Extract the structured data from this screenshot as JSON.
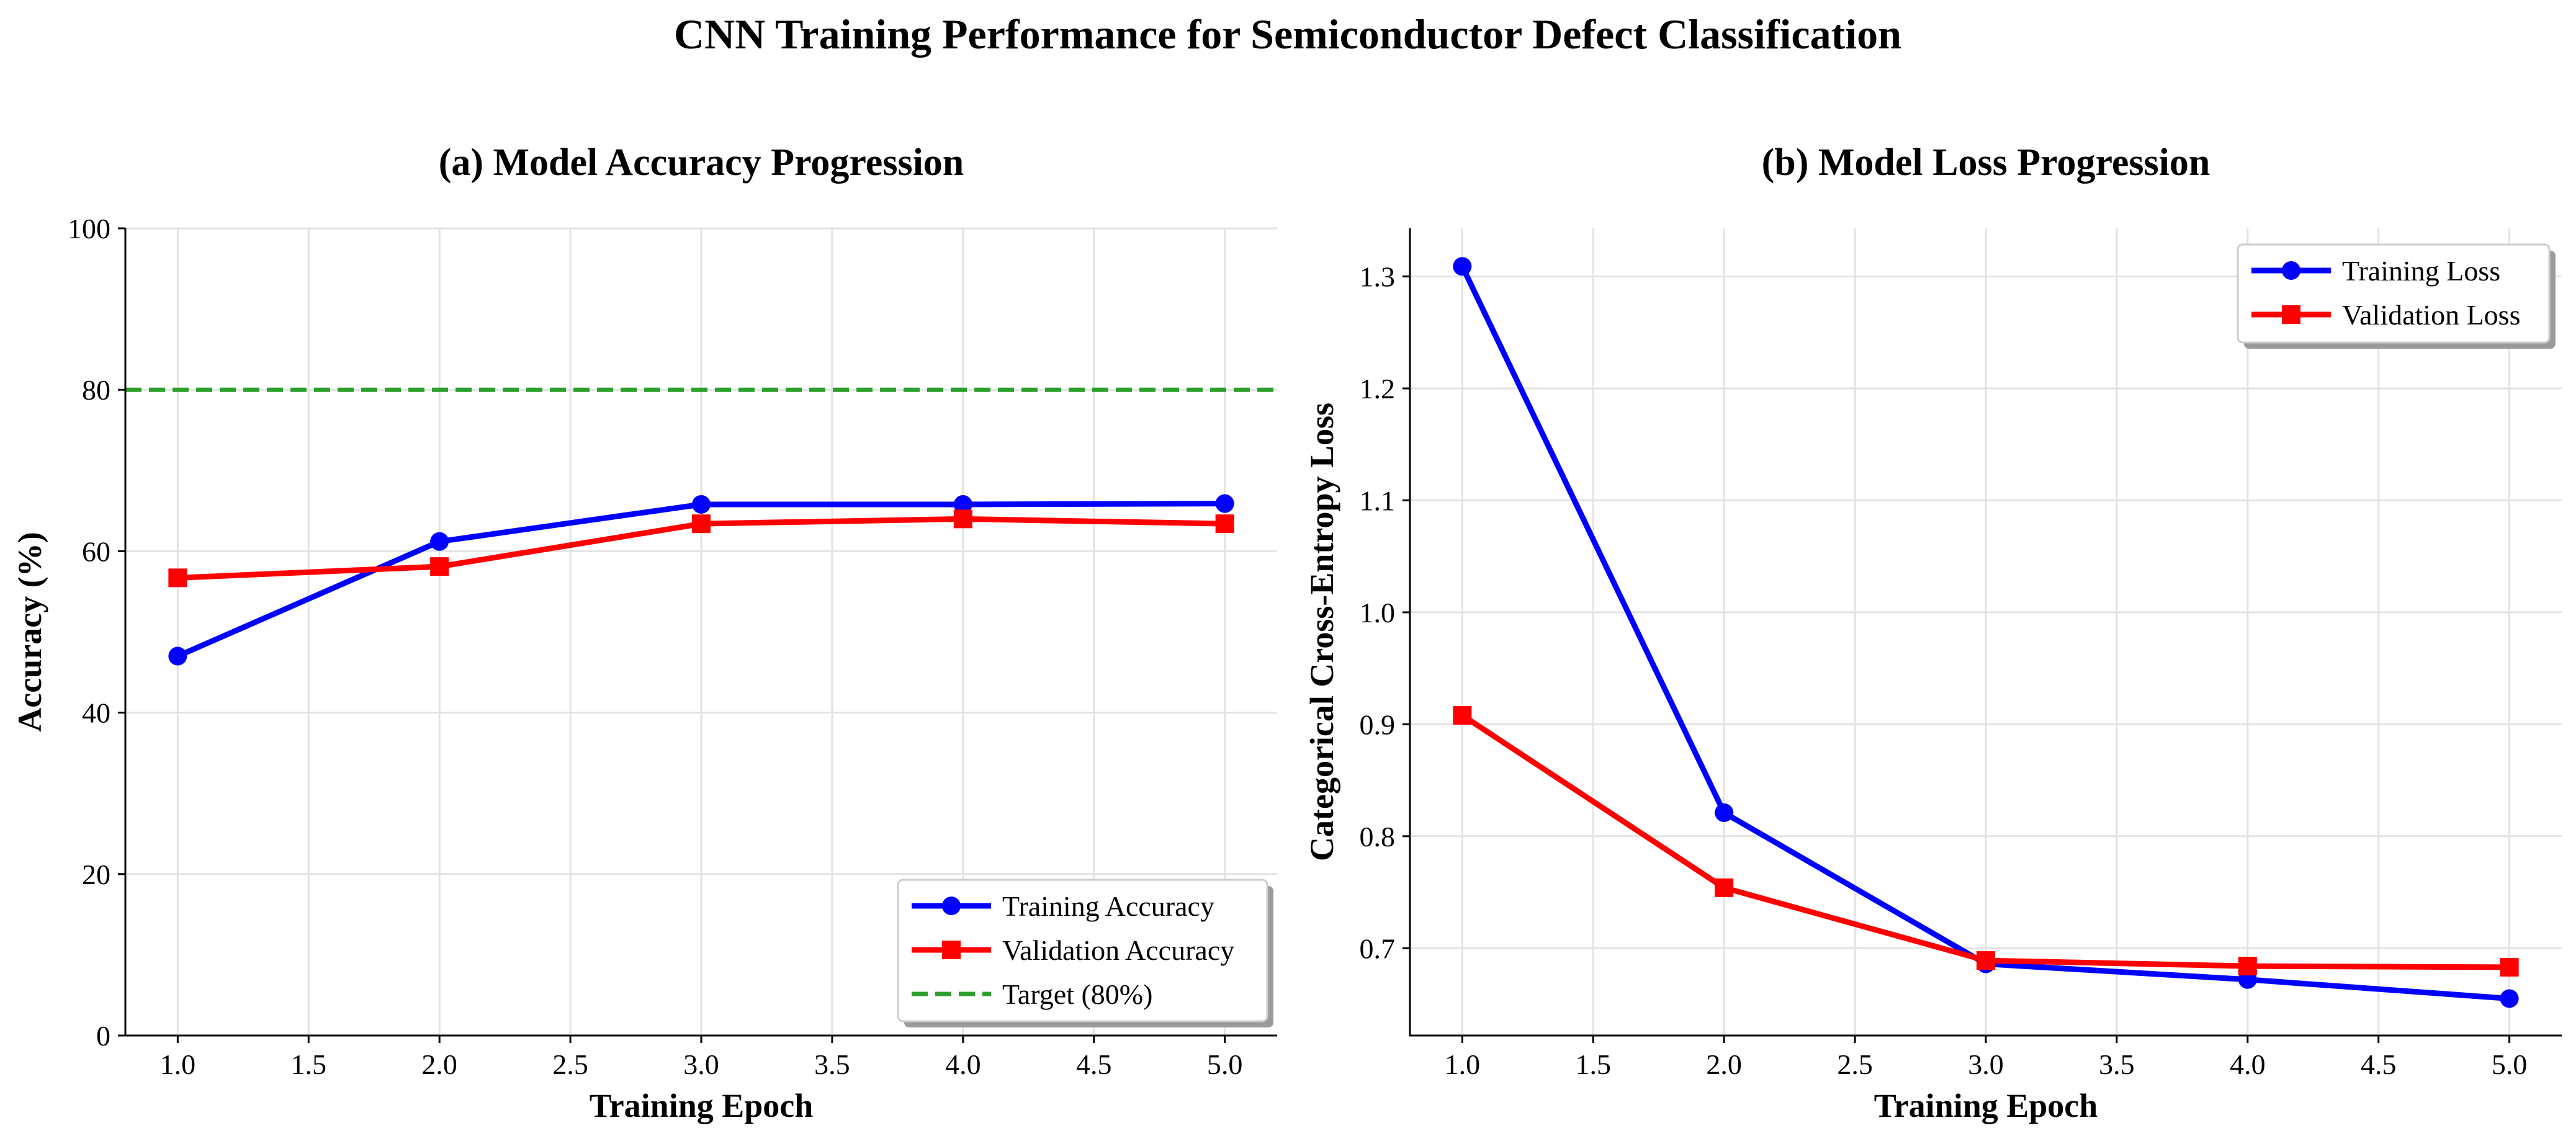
{
  "chart_data": {
    "title": "CNN Training Performance for Semiconductor Defect Classification",
    "colors": {
      "blue": "#0000ff",
      "red": "#ff0000",
      "green": "#2ca02c",
      "grid": "#e3e3e3",
      "axis": "#000000"
    },
    "panels": [
      {
        "type": "line",
        "title": "(a) Model Accuracy Progression",
        "xlabel": "Training Epoch",
        "ylabel": "Accuracy (%)",
        "xlim": [
          0.8,
          5.2
        ],
        "ylim": [
          0,
          100
        ],
        "xticks": [
          1.0,
          1.5,
          2.0,
          2.5,
          3.0,
          3.5,
          4.0,
          4.5,
          5.0
        ],
        "xtick_labels": [
          "1.0",
          "1.5",
          "2.0",
          "2.5",
          "3.0",
          "3.5",
          "4.0",
          "4.5",
          "5.0"
        ],
        "yticks": [
          0,
          20,
          40,
          60,
          80,
          100
        ],
        "ytick_labels": [
          "0",
          "20",
          "40",
          "60",
          "80",
          "100"
        ],
        "grid": true,
        "legend": "lower right",
        "x": [
          1,
          2,
          3,
          4,
          5
        ],
        "series": [
          {
            "name": "Training Accuracy",
            "color": "#0000ff",
            "marker": "circle",
            "values": [
              47.0,
              61.2,
              65.8,
              65.8,
              65.9
            ]
          },
          {
            "name": "Validation Accuracy",
            "color": "#ff0000",
            "marker": "square",
            "values": [
              56.7,
              58.1,
              63.4,
              64.0,
              63.4
            ]
          }
        ],
        "reference_line": {
          "name": "Target (80%)",
          "value": 80,
          "color": "#2ca02c",
          "style": "dashed"
        }
      },
      {
        "type": "line",
        "title": "(b) Model Loss Progression",
        "xlabel": "Training Epoch",
        "ylabel": "Categorical Cross-Entropy Loss",
        "xlim": [
          0.8,
          5.2
        ],
        "ylim": [
          0.622,
          1.343
        ],
        "xticks": [
          1.0,
          1.5,
          2.0,
          2.5,
          3.0,
          3.5,
          4.0,
          4.5,
          5.0
        ],
        "xtick_labels": [
          "1.0",
          "1.5",
          "2.0",
          "2.5",
          "3.0",
          "3.5",
          "4.0",
          "4.5",
          "5.0"
        ],
        "yticks": [
          0.7,
          0.8,
          0.9,
          1.0,
          1.1,
          1.2,
          1.3
        ],
        "ytick_labels": [
          "0.7",
          "0.8",
          "0.9",
          "1.0",
          "1.1",
          "1.2",
          "1.3"
        ],
        "grid": true,
        "legend": "upper right",
        "x": [
          1,
          2,
          3,
          4,
          5
        ],
        "series": [
          {
            "name": "Training Loss",
            "color": "#0000ff",
            "marker": "circle",
            "values": [
              1.309,
              0.821,
              0.686,
              0.672,
              0.655
            ]
          },
          {
            "name": "Validation Loss",
            "color": "#ff0000",
            "marker": "square",
            "values": [
              0.908,
              0.754,
              0.689,
              0.684,
              0.683
            ]
          }
        ]
      }
    ]
  }
}
